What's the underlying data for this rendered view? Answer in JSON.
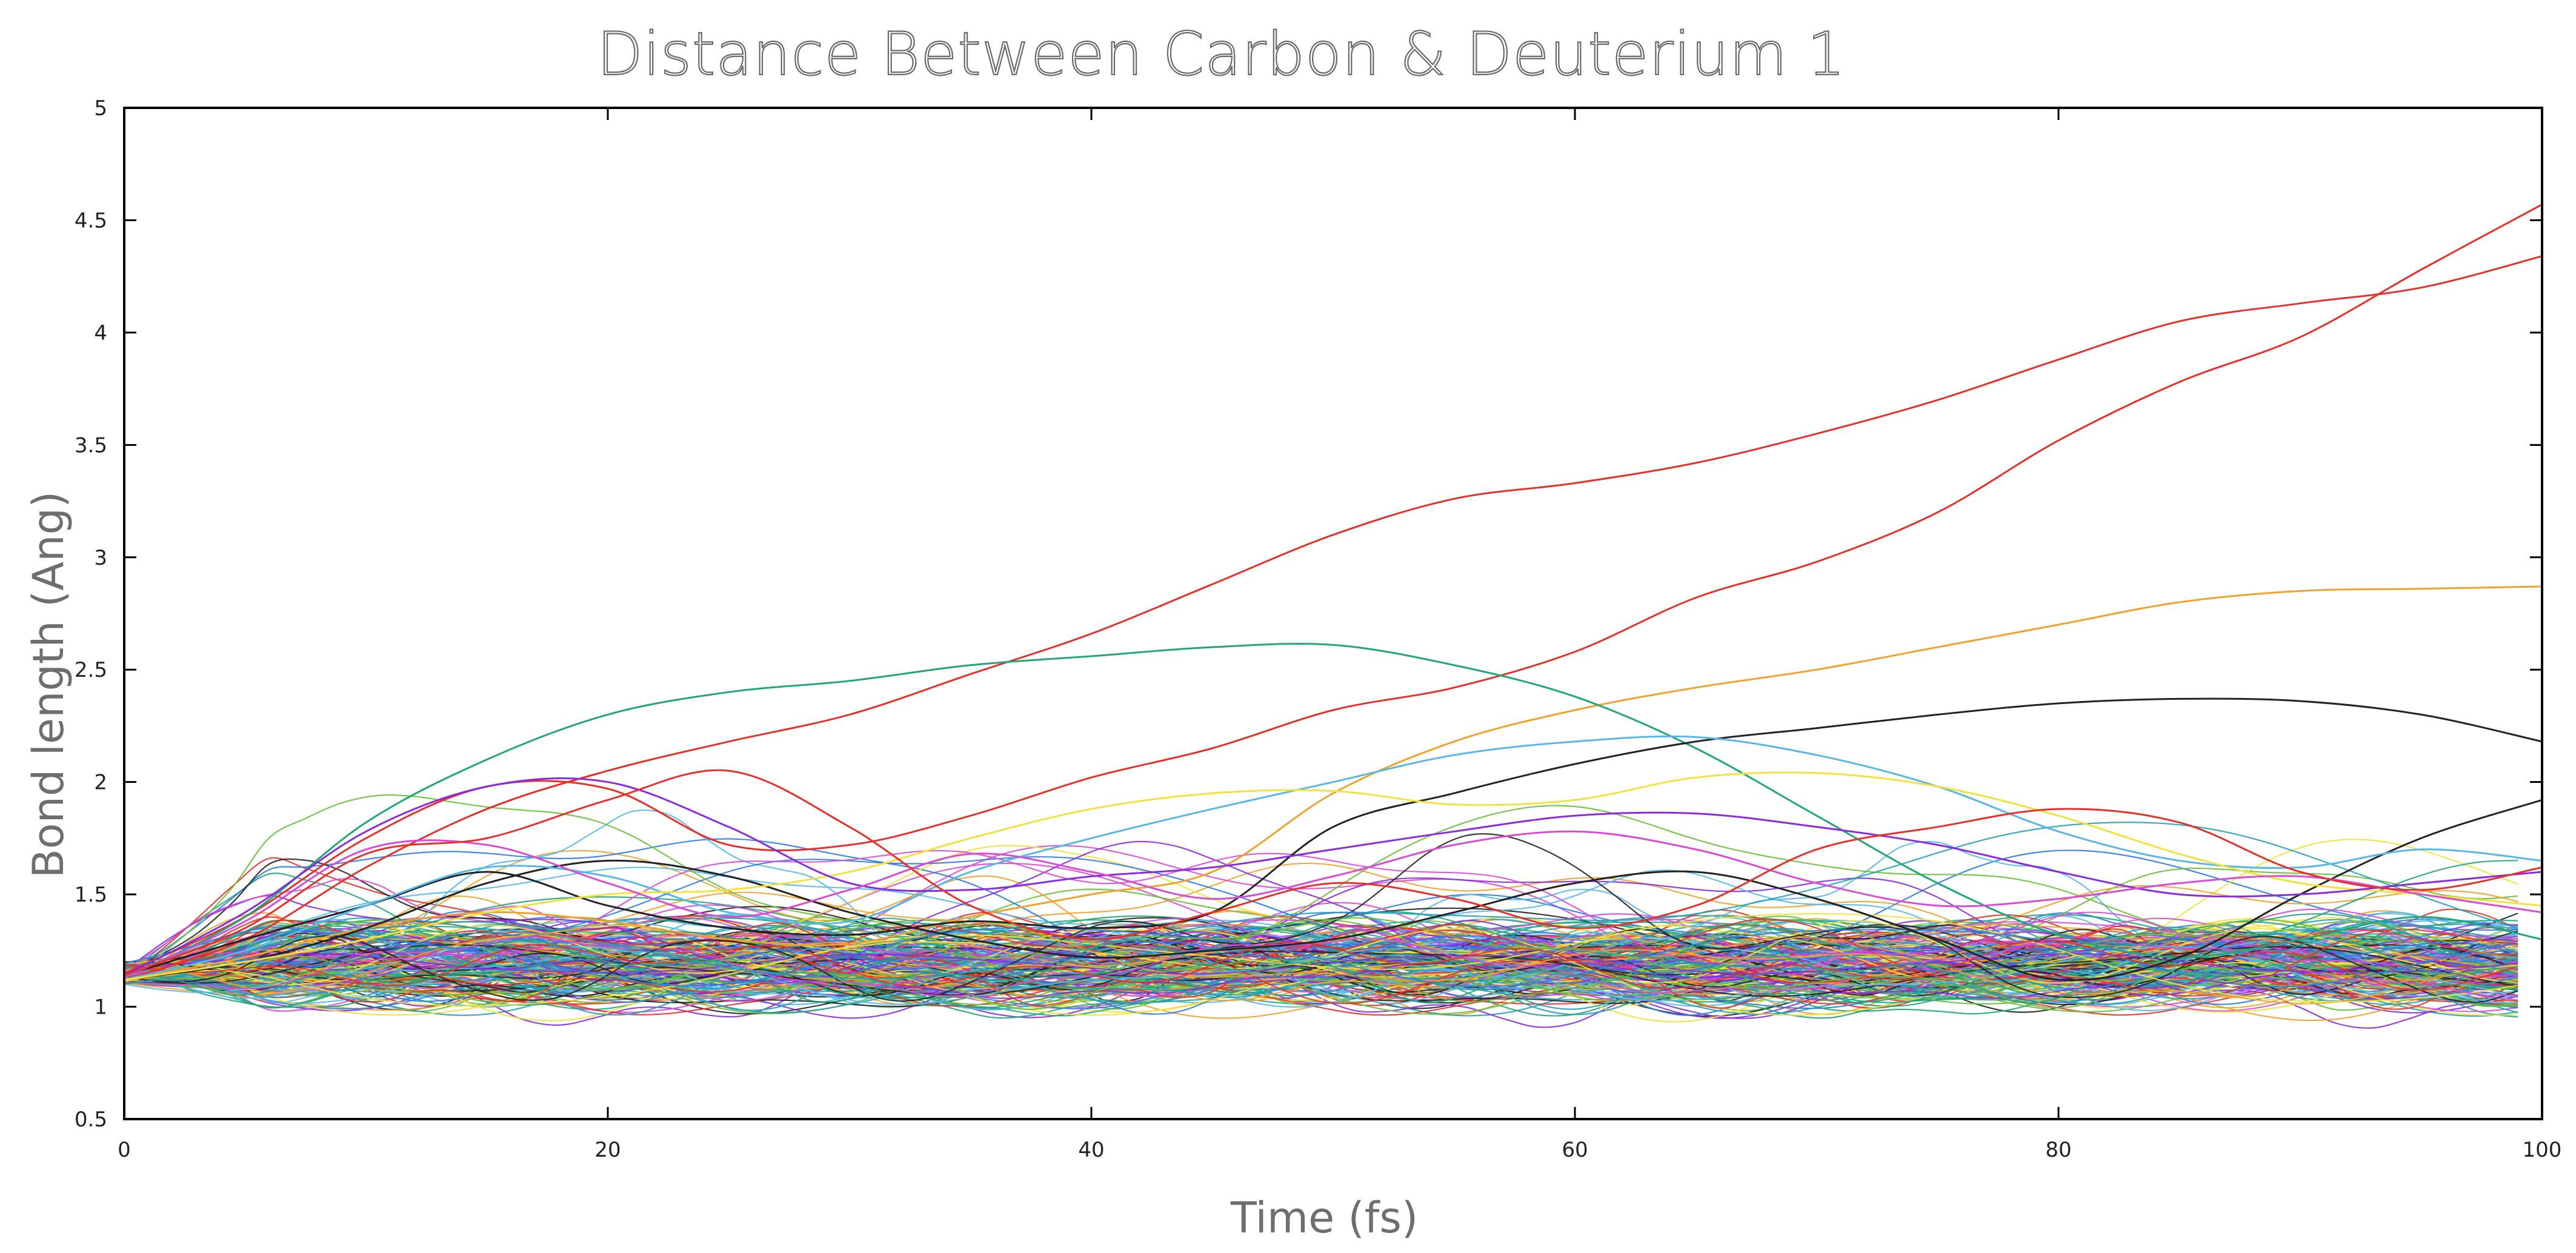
{
  "chart_data": {
    "type": "line",
    "title": "Distance Between Carbon & Deuterium 1",
    "xlabel": "Time (fs)",
    "ylabel": "Bond length (Ang)",
    "xlim": [
      0,
      100
    ],
    "ylim": [
      0.5,
      5
    ],
    "x_ticks": [
      "0",
      "20",
      "40",
      "60",
      "80",
      "100"
    ],
    "y_ticks": [
      "0.5",
      "1",
      "1.5",
      "2",
      "2.5",
      "3",
      "3.5",
      "4",
      "4.5",
      "5"
    ],
    "grid": false,
    "legend": "none",
    "series_note_count": 200,
    "x": [
      0,
      5,
      10,
      15,
      20,
      25,
      30,
      35,
      40,
      45,
      50,
      55,
      60,
      65,
      70,
      75,
      80,
      85,
      90,
      95,
      100
    ],
    "series": [
      {
        "color": "#e8302a",
        "values": [
          1.12,
          1.3,
          1.62,
          1.88,
          2.05,
          2.18,
          2.3,
          2.48,
          2.66,
          2.88,
          3.1,
          3.26,
          3.33,
          3.42,
          3.55,
          3.7,
          3.88,
          4.05,
          4.13,
          4.2,
          4.34
        ]
      },
      {
        "color": "#e8302a",
        "values": [
          1.15,
          1.4,
          1.75,
          1.98,
          1.97,
          1.72,
          1.72,
          1.85,
          2.02,
          2.15,
          2.32,
          2.42,
          2.58,
          2.82,
          2.98,
          3.2,
          3.52,
          3.78,
          3.98,
          4.28,
          4.57
        ]
      },
      {
        "color": "#f0a22b",
        "values": [
          1.12,
          1.22,
          1.35,
          1.42,
          1.38,
          1.3,
          1.28,
          1.4,
          1.5,
          1.6,
          1.95,
          2.18,
          2.32,
          2.42,
          2.5,
          2.6,
          2.7,
          2.8,
          2.85,
          2.86,
          2.87
        ]
      },
      {
        "color": "#1fa67a",
        "values": [
          1.13,
          1.4,
          1.82,
          2.1,
          2.3,
          2.4,
          2.45,
          2.52,
          2.56,
          2.6,
          2.61,
          2.52,
          2.38,
          2.15,
          1.85,
          1.55,
          1.32,
          1.22,
          1.3,
          1.4,
          1.3
        ]
      },
      {
        "color": "#222222",
        "values": [
          1.14,
          1.3,
          1.45,
          1.6,
          1.45,
          1.35,
          1.32,
          1.38,
          1.35,
          1.42,
          1.8,
          1.95,
          2.08,
          2.18,
          2.24,
          2.3,
          2.35,
          2.37,
          2.36,
          2.3,
          2.18
        ]
      },
      {
        "color": "#222222",
        "values": [
          1.12,
          1.2,
          1.35,
          1.55,
          1.65,
          1.58,
          1.42,
          1.3,
          1.22,
          1.25,
          1.3,
          1.42,
          1.55,
          1.6,
          1.48,
          1.3,
          1.12,
          1.22,
          1.5,
          1.75,
          1.92
        ]
      },
      {
        "color": "#57b8e8",
        "values": [
          1.12,
          1.25,
          1.45,
          1.62,
          1.58,
          1.42,
          1.38,
          1.6,
          1.75,
          1.88,
          2.0,
          2.12,
          2.18,
          2.2,
          2.12,
          1.98,
          1.78,
          1.65,
          1.62,
          1.7,
          1.65
        ]
      },
      {
        "color": "#f2e23b",
        "values": [
          1.12,
          1.2,
          1.3,
          1.42,
          1.5,
          1.52,
          1.6,
          1.75,
          1.88,
          1.95,
          1.96,
          1.9,
          1.92,
          2.02,
          2.04,
          1.98,
          1.85,
          1.68,
          1.55,
          1.5,
          1.45
        ]
      },
      {
        "color": "#8a2be2",
        "values": [
          1.14,
          1.42,
          1.78,
          1.98,
          2.0,
          1.8,
          1.55,
          1.52,
          1.58,
          1.62,
          1.7,
          1.78,
          1.85,
          1.86,
          1.8,
          1.72,
          1.6,
          1.5,
          1.5,
          1.55,
          1.6
        ]
      },
      {
        "color": "#d94bd6",
        "values": [
          1.13,
          1.38,
          1.7,
          1.72,
          1.55,
          1.4,
          1.52,
          1.68,
          1.6,
          1.48,
          1.58,
          1.72,
          1.78,
          1.7,
          1.55,
          1.45,
          1.48,
          1.55,
          1.58,
          1.5,
          1.42
        ]
      },
      {
        "color": "#e8302a",
        "values": [
          1.14,
          1.35,
          1.68,
          1.75,
          1.92,
          2.05,
          1.8,
          1.45,
          1.3,
          1.42,
          1.55,
          1.48,
          1.35,
          1.45,
          1.7,
          1.8,
          1.88,
          1.82,
          1.6,
          1.52,
          1.62
        ]
      }
    ]
  }
}
